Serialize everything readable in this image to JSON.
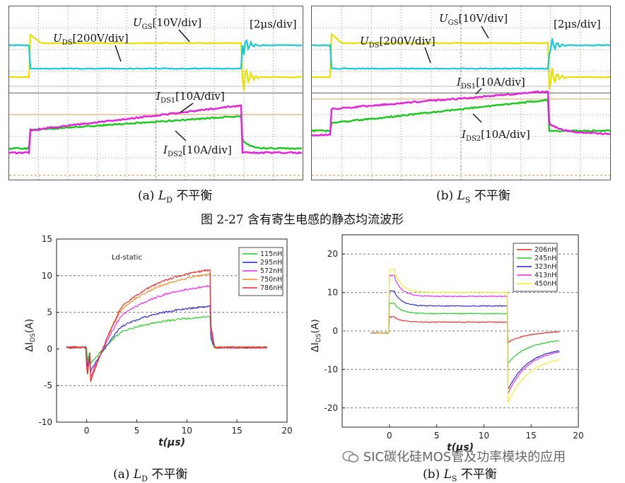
{
  "top": {
    "panel_a": {
      "caption_prefix": "(a)",
      "caption_var": "L",
      "caption_sub": "D",
      "caption_text": "不平衡",
      "timebase": "[2μs/div]",
      "labels": [
        {
          "main": "U",
          "sub": "GS",
          "rest": "[10V/div]"
        },
        {
          "main": "U",
          "sub": "DS",
          "rest": "[200V/div]"
        },
        {
          "main": "I",
          "sub": "DS1",
          "rest": "[10A/div]"
        },
        {
          "main": "I",
          "sub": "DS2",
          "rest": "[10A/div]"
        }
      ]
    },
    "panel_b": {
      "caption_prefix": "(b)",
      "caption_var": "L",
      "caption_sub": "S",
      "caption_text": "不平衡",
      "timebase": "[2μs/div]",
      "labels": [
        {
          "main": "U",
          "sub": "GS",
          "rest": "[10V/div]"
        },
        {
          "main": "U",
          "sub": "DS",
          "rest": "[200V/div]"
        },
        {
          "main": "I",
          "sub": "DS1",
          "rest": "[10A/div]"
        },
        {
          "main": "I",
          "sub": "DS2",
          "rest": "[10A/div]"
        }
      ]
    },
    "figure_title": "图 2-27  含有寄生电感的静态均流波形"
  },
  "bottom": {
    "panel_a": {
      "caption_prefix": "(a)",
      "caption_var": "L",
      "caption_sub": "D",
      "caption_text": "不平衡"
    },
    "panel_b": {
      "caption_prefix": "(b)",
      "caption_var": "L",
      "caption_sub": "S",
      "caption_text": "不平衡"
    }
  },
  "watermark": "SIC碳化硅MOS管及功率模块的应用",
  "colors": {
    "yellow": "#e8e000",
    "cyan": "#19c9d6",
    "magenta": "#e81ce0",
    "green": "#19c919",
    "orange_ref": "#d98a1c"
  },
  "chart_data": [
    {
      "type": "line",
      "title": "Ld-static",
      "xlabel": "t(μs)",
      "ylabel": "ΔI_DS(A)",
      "xlim": [
        -3,
        20
      ],
      "ylim": [
        -10,
        15
      ],
      "xticks": [
        0,
        5,
        10,
        15,
        20
      ],
      "yticks": [
        -10,
        -5,
        0,
        5,
        10,
        15
      ],
      "grid": "dashed horizontal at ±5, 10",
      "legend": "top-right",
      "series": [
        {
          "name": "115nH",
          "color": "#22cc22",
          "steady": 0.2,
          "spike": -2.0,
          "end": 4.4
        },
        {
          "name": "295nH",
          "color": "#2222cc",
          "steady": 0.2,
          "spike": -3.0,
          "end": 5.8
        },
        {
          "name": "572nH",
          "color": "#ee22ee",
          "steady": 0.2,
          "spike": -3.8,
          "end": 8.6
        },
        {
          "name": "750nH",
          "color": "#ee8822",
          "steady": 0.2,
          "spike": -4.2,
          "end": 10.2
        },
        {
          "name": "786nH",
          "color": "#ee2222",
          "steady": 0.2,
          "spike": -4.5,
          "end": 10.8
        }
      ]
    },
    {
      "type": "line",
      "title": "",
      "xlabel": "t(μs)",
      "ylabel": "ΔI_DS(A)",
      "xlim": [
        -5,
        20
      ],
      "ylim": [
        -25,
        25
      ],
      "xticks": [
        0,
        5,
        10,
        15,
        20
      ],
      "yticks": [
        -20,
        -10,
        0,
        10,
        20
      ],
      "grid": "dashed horizontal at ±10, ±20",
      "legend": "top-right",
      "series": [
        {
          "name": "206nH",
          "color": "#ee2222",
          "pre": -0.5,
          "flat": 2.3,
          "post_min": -3.0,
          "post_end": 0.0
        },
        {
          "name": "245nH",
          "color": "#22cc22",
          "pre": -0.5,
          "flat": 4.5,
          "post_min": -8.5,
          "post_end": -2.0
        },
        {
          "name": "323nH",
          "color": "#2222cc",
          "pre": -0.5,
          "flat": 6.5,
          "post_min": -15.5,
          "post_end": -4.2
        },
        {
          "name": "413nH",
          "color": "#ee22ee",
          "pre": -0.5,
          "flat": 9.0,
          "post_min": -16.5,
          "post_end": -4.5
        },
        {
          "name": "450nH",
          "color": "#eeee22",
          "pre": -0.5,
          "flat": 10.0,
          "post_min": -19.0,
          "post_end": -6.5
        }
      ]
    }
  ]
}
